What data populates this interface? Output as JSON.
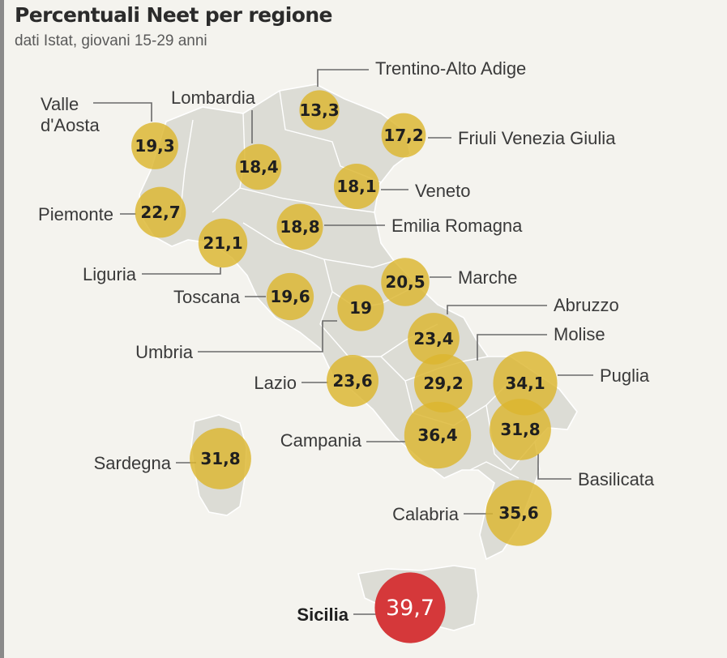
{
  "title": "Percentuali Neet per regione",
  "subtitle": "dati Istat, giovani 15-29 anni",
  "colors": {
    "bubble": "#dcb62e",
    "highlight": "#d5383a",
    "land": "#dcdcd5"
  },
  "chart_data": {
    "type": "bubble-map",
    "unit": "%",
    "regions": [
      {
        "name": "Valle d'Aosta",
        "label_lines": [
          "Valle",
          "d'Aosta"
        ],
        "value": "19,3"
      },
      {
        "name": "Lombardia",
        "label_lines": [
          "Lombardia"
        ],
        "value": "18,4"
      },
      {
        "name": "Trentino-Alto Adige",
        "label_lines": [
          "Trentino-Alto Adige"
        ],
        "value": "13,3"
      },
      {
        "name": "Friuli Venezia Giulia",
        "label_lines": [
          "Friuli Venezia Giulia"
        ],
        "value": "17,2"
      },
      {
        "name": "Veneto",
        "label_lines": [
          "Veneto"
        ],
        "value": "18,1"
      },
      {
        "name": "Piemonte",
        "label_lines": [
          "Piemonte"
        ],
        "value": "22,7"
      },
      {
        "name": "Emilia Romagna",
        "label_lines": [
          "Emilia Romagna"
        ],
        "value": "18,8"
      },
      {
        "name": "Liguria",
        "label_lines": [
          "Liguria"
        ],
        "value": "21,1"
      },
      {
        "name": "Marche",
        "label_lines": [
          "Marche"
        ],
        "value": "20,5"
      },
      {
        "name": "Toscana",
        "label_lines": [
          "Toscana"
        ],
        "value": "19,6"
      },
      {
        "name": "Umbria",
        "label_lines": [
          "Umbria"
        ],
        "value": "19"
      },
      {
        "name": "Abruzzo",
        "label_lines": [
          "Abruzzo"
        ],
        "value": "23,4"
      },
      {
        "name": "Molise",
        "label_lines": [
          "Molise"
        ],
        "value": "29,2"
      },
      {
        "name": "Puglia",
        "label_lines": [
          "Puglia"
        ],
        "value": "34,1"
      },
      {
        "name": "Lazio",
        "label_lines": [
          "Lazio"
        ],
        "value": "23,6"
      },
      {
        "name": "Campania",
        "label_lines": [
          "Campania"
        ],
        "value": "36,4"
      },
      {
        "name": "Basilicata",
        "label_lines": [
          "Basilicata"
        ],
        "value": "31,8"
      },
      {
        "name": "Sardegna",
        "label_lines": [
          "Sardegna"
        ],
        "value": "31,8"
      },
      {
        "name": "Calabria",
        "label_lines": [
          "Calabria"
        ],
        "value": "35,6"
      },
      {
        "name": "Sicilia",
        "label_lines": [
          "Sicilia"
        ],
        "value": "39,7",
        "highlight": true
      }
    ]
  }
}
